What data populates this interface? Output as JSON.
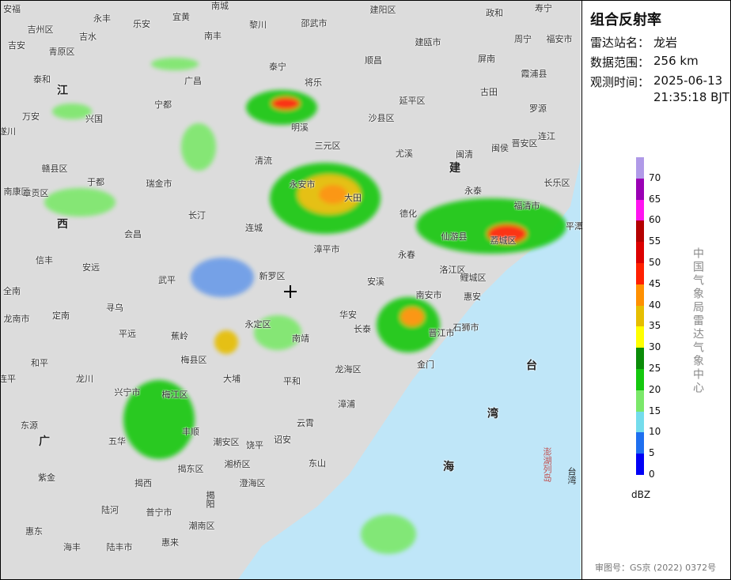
{
  "map": {
    "places": [
      "安福",
      "吉州区",
      "永丰",
      "乐安",
      "宜黄",
      "南城",
      "黎川",
      "邵武市",
      "建阳区",
      "政和",
      "寿宁",
      "吉安",
      "青原区",
      "吉水",
      "南丰",
      "建瓯市",
      "周宁",
      "福安市",
      "泰和",
      "广昌",
      "泰宁",
      "顺昌",
      "屏南",
      "霞浦县",
      "江",
      "宁都",
      "将乐",
      "延平区",
      "古田",
      "万安",
      "兴国",
      "明溪",
      "沙县区",
      "罗源",
      "遂川",
      "三元区",
      "尤溪",
      "闽清",
      "闽侯",
      "晋安区",
      "连江",
      "赣县区",
      "清流",
      "建",
      "南康区",
      "于都",
      "瑞金市",
      "永安市",
      "大田",
      "长乐区",
      "章贡区",
      "永泰",
      "福清市",
      "长汀",
      "德化",
      "西",
      "会昌",
      "连城",
      "仙游县",
      "平潭",
      "信丰",
      "漳平市",
      "永春",
      "荔城区",
      "安远",
      "新罗区",
      "武平",
      "安溪",
      "洛江区",
      "全南",
      "鲤城区",
      "惠安",
      "寻乌",
      "南安市",
      "龙南市",
      "定南",
      "华安",
      "永定区",
      "石狮市",
      "平远",
      "蕉岭",
      "南靖",
      "长泰",
      "晋江市",
      "和平",
      "梅县区",
      "龙海区",
      "金门",
      "台",
      "大埔",
      "平和",
      "龙川",
      "连平",
      "兴宁市",
      "梅江区",
      "漳浦",
      "湾",
      "东源",
      "丰顺",
      "广",
      "五华",
      "潮安区",
      "饶平",
      "云霄",
      "诏安",
      "海",
      "湘桥区",
      "揭东区",
      "东山",
      "紫金",
      "澄海区",
      "揭西",
      "陆河",
      "普宁市",
      "潮南区",
      "惠东",
      "海丰",
      "陆丰市",
      "惠来"
    ],
    "vertical_places": [
      "澎湖列岛",
      "台湾",
      "揭阳"
    ]
  },
  "panel": {
    "title": "组合反射率",
    "station_label": "雷达站名：",
    "station": "龙岩",
    "range_label": "数据范围：",
    "range": "256 km",
    "time_label": "观测时间：",
    "date": "2025-06-13",
    "time": "21:35:18 BJT",
    "source": "中国气象局雷达气象中心",
    "approval": "审图号：GS京 (2022) 0372号"
  },
  "legend": {
    "unit": "dBZ",
    "levels": [
      0,
      5,
      10,
      15,
      20,
      25,
      30,
      35,
      40,
      45,
      50,
      55,
      60,
      65,
      70
    ],
    "colors": [
      "#0000f6",
      "#1e6ff0",
      "#74dcec",
      "#7be86a",
      "#14c80e",
      "#0a8c08",
      "#ffff00",
      "#e6be00",
      "#ff9000",
      "#ff2000",
      "#dc0000",
      "#b40000",
      "#ff14f0",
      "#9a00b4",
      "#b09ae8"
    ]
  }
}
